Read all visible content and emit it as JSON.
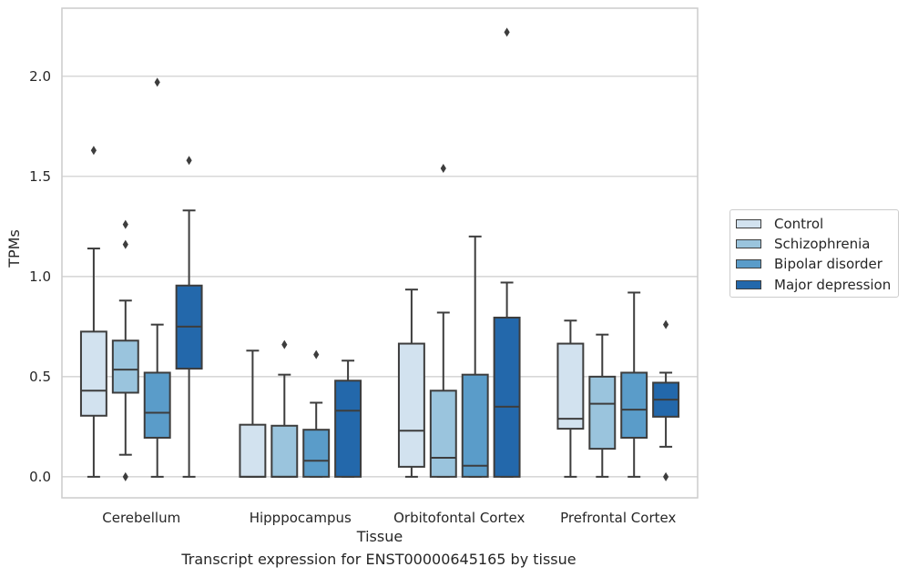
{
  "chart_data": {
    "type": "box",
    "title": "",
    "xlabel": "Tissue",
    "ylabel": "TPMs",
    "ylim": [
      -0.105,
      2.34
    ],
    "yticks": [
      0.0,
      0.5,
      1.0,
      1.5,
      2.0
    ],
    "ytick_labels": [
      "0.0",
      "0.5",
      "1.0",
      "1.5",
      "2.0"
    ],
    "categories": [
      "Cerebellum",
      "Hipppocampus",
      "Orbitofontal Cortex",
      "Prefrontal Cortex"
    ],
    "grid": true,
    "legend_position": "right",
    "series": [
      {
        "name": "Control",
        "color": "#d2e2ef",
        "boxes": [
          {
            "whisker_low": 0.0,
            "q1": 0.305,
            "median": 0.43,
            "q3": 0.725,
            "whisker_high": 1.14,
            "outliers": [
              1.63
            ]
          },
          {
            "whisker_low": 0.0,
            "q1": 0.0,
            "median": 0.0,
            "q3": 0.26,
            "whisker_high": 0.63,
            "outliers": []
          },
          {
            "whisker_low": 0.0,
            "q1": 0.05,
            "median": 0.23,
            "q3": 0.665,
            "whisker_high": 0.935,
            "outliers": []
          },
          {
            "whisker_low": 0.0,
            "q1": 0.24,
            "median": 0.29,
            "q3": 0.665,
            "whisker_high": 0.78,
            "outliers": []
          }
        ]
      },
      {
        "name": "Schizophrenia",
        "color": "#9ac4dd",
        "boxes": [
          {
            "whisker_low": 0.11,
            "q1": 0.42,
            "median": 0.535,
            "q3": 0.68,
            "whisker_high": 0.88,
            "outliers": [
              0.0,
              1.16,
              1.26
            ]
          },
          {
            "whisker_low": 0.0,
            "q1": 0.0,
            "median": 0.0,
            "q3": 0.255,
            "whisker_high": 0.51,
            "outliers": [
              0.66
            ]
          },
          {
            "whisker_low": 0.0,
            "q1": 0.0,
            "median": 0.095,
            "q3": 0.43,
            "whisker_high": 0.82,
            "outliers": [
              1.54
            ]
          },
          {
            "whisker_low": 0.0,
            "q1": 0.14,
            "median": 0.365,
            "q3": 0.5,
            "whisker_high": 0.71,
            "outliers": []
          }
        ]
      },
      {
        "name": "Bipolar disorder",
        "color": "#5a9cc9",
        "boxes": [
          {
            "whisker_low": 0.0,
            "q1": 0.195,
            "median": 0.32,
            "q3": 0.52,
            "whisker_high": 0.76,
            "outliers": [
              1.97
            ]
          },
          {
            "whisker_low": 0.0,
            "q1": 0.0,
            "median": 0.08,
            "q3": 0.235,
            "whisker_high": 0.37,
            "outliers": [
              0.61
            ]
          },
          {
            "whisker_low": 0.0,
            "q1": 0.0,
            "median": 0.055,
            "q3": 0.51,
            "whisker_high": 1.2,
            "outliers": []
          },
          {
            "whisker_low": 0.0,
            "q1": 0.195,
            "median": 0.335,
            "q3": 0.52,
            "whisker_high": 0.92,
            "outliers": []
          }
        ]
      },
      {
        "name": "Major depression",
        "color": "#2368ab",
        "boxes": [
          {
            "whisker_low": 0.0,
            "q1": 0.54,
            "median": 0.75,
            "q3": 0.955,
            "whisker_high": 1.33,
            "outliers": [
              1.58
            ]
          },
          {
            "whisker_low": 0.0,
            "q1": 0.0,
            "median": 0.33,
            "q3": 0.48,
            "whisker_high": 0.58,
            "outliers": []
          },
          {
            "whisker_low": 0.0,
            "q1": 0.0,
            "median": 0.35,
            "q3": 0.795,
            "whisker_high": 0.97,
            "outliers": [
              2.22
            ]
          },
          {
            "whisker_low": 0.15,
            "q1": 0.3,
            "median": 0.385,
            "q3": 0.47,
            "whisker_high": 0.52,
            "outliers": [
              0.0,
              0.76
            ]
          }
        ]
      }
    ]
  },
  "caption": "Transcript expression for ENST00000645165 by tissue",
  "colors": {
    "box_line": "#3d3d3d",
    "grid": "#cccccc",
    "axis": "#cccccc"
  }
}
